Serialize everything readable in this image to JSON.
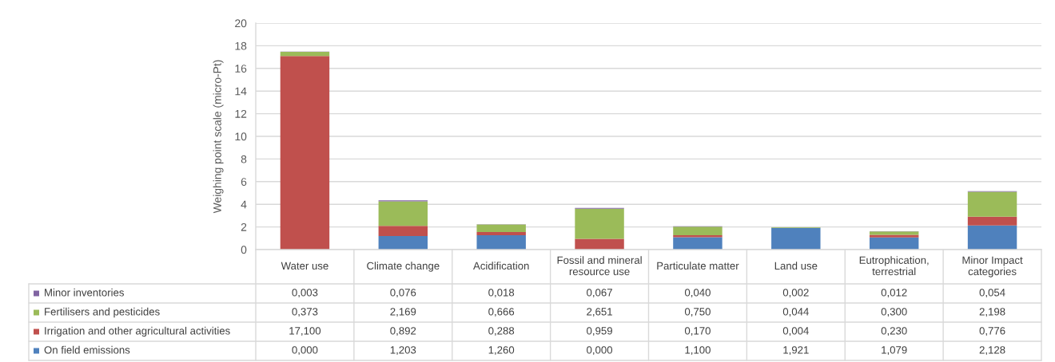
{
  "chart_data": {
    "type": "bar",
    "stacked": true,
    "ylabel": "Weighing point scale (micro-Pt)",
    "categories": [
      "Water use",
      "Climate change",
      "Acidification",
      "Fossil and mineral resource use",
      "Particulate matter",
      "Land use",
      "Eutrophication, terrestrial",
      "Minor Impact categories"
    ],
    "series": [
      {
        "name": "On field emissions",
        "color": "#4f81bd",
        "values": [
          0.0,
          1.203,
          1.26,
          0.0,
          1.1,
          1.921,
          1.079,
          2.128
        ],
        "value_labels": [
          "0,000",
          "1,203",
          "1,260",
          "0,000",
          "1,100",
          "1,921",
          "1,079",
          "2,128"
        ]
      },
      {
        "name": "Irrigation and other agricultural activities",
        "color": "#c0504d",
        "values": [
          17.1,
          0.892,
          0.288,
          0.959,
          0.17,
          0.004,
          0.23,
          0.776
        ],
        "value_labels": [
          "17,100",
          "0,892",
          "0,288",
          "0,959",
          "0,170",
          "0,004",
          "0,230",
          "0,776"
        ]
      },
      {
        "name": "Fertilisers and pesticides",
        "color": "#9bbb59",
        "values": [
          0.373,
          2.169,
          0.666,
          2.651,
          0.75,
          0.044,
          0.3,
          2.198
        ],
        "value_labels": [
          "0,373",
          "2,169",
          "0,666",
          "2,651",
          "0,750",
          "0,044",
          "0,300",
          "2,198"
        ]
      },
      {
        "name": "Minor inventories",
        "color": "#8064a2",
        "values": [
          0.003,
          0.076,
          0.018,
          0.067,
          0.04,
          0.002,
          0.012,
          0.054
        ],
        "value_labels": [
          "0,003",
          "0,076",
          "0,018",
          "0,067",
          "0,040",
          "0,002",
          "0,012",
          "0,054"
        ]
      }
    ],
    "ylim": [
      0,
      20
    ],
    "yticks": [
      0,
      2,
      4,
      6,
      8,
      10,
      12,
      14,
      16,
      18,
      20
    ],
    "grid": "y",
    "legend": "bottom"
  }
}
